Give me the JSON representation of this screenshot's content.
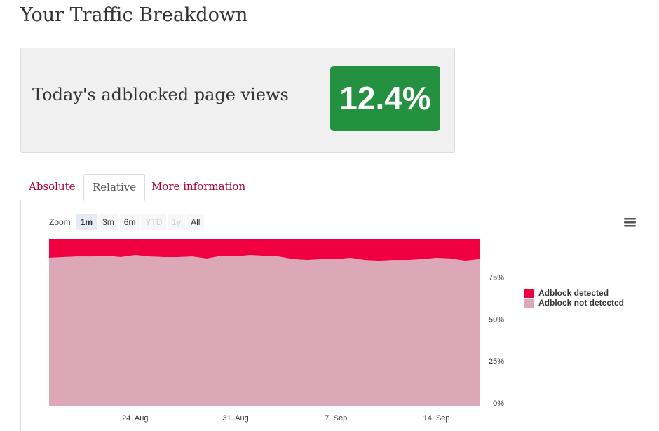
{
  "header": {
    "title": "Your Traffic Breakdown"
  },
  "summary": {
    "label": "Today's adblocked page views",
    "value": "12.4%"
  },
  "tabs": [
    "Absolute",
    "Relative",
    "More information"
  ],
  "zoom": {
    "label": "Zoom",
    "buttons": [
      "1m",
      "3m",
      "6m",
      "YTD",
      "1y",
      "All"
    ]
  },
  "chart_data": {
    "type": "stacked-area",
    "categories": [
      null,
      null,
      null,
      null,
      null,
      null,
      "24. Aug",
      null,
      null,
      null,
      null,
      null,
      null,
      "31. Aug",
      null,
      null,
      null,
      null,
      null,
      null,
      "7. Sep",
      null,
      null,
      null,
      null,
      null,
      null,
      "14. Sep",
      null,
      null,
      null
    ],
    "series": [
      {
        "name": "Adblock detected",
        "color": "#f00040",
        "values": [
          11.3,
          10.9,
          10.5,
          10.5,
          10.1,
          10.9,
          9.6,
          10.5,
          10.9,
          10.9,
          10.5,
          11.7,
          10.1,
          10.5,
          9.6,
          10.1,
          10.5,
          12.1,
          12.6,
          12.1,
          12.1,
          11.3,
          12.6,
          13.0,
          12.6,
          12.6,
          12.1,
          11.3,
          11.7,
          13.0,
          12.1
        ]
      },
      {
        "name": "Adblock not detected",
        "color": "#dca7b7",
        "values": [
          88.7,
          89.1,
          89.5,
          89.5,
          89.9,
          89.1,
          90.4,
          89.5,
          89.1,
          89.1,
          89.5,
          88.3,
          89.9,
          89.5,
          90.4,
          89.9,
          89.5,
          87.9,
          87.4,
          87.9,
          87.9,
          88.7,
          87.4,
          87.0,
          87.4,
          87.4,
          87.9,
          88.7,
          88.3,
          87.0,
          87.9
        ]
      }
    ],
    "ylim": [
      0,
      100
    ],
    "yticks": [
      {
        "value": 0,
        "label": "0%"
      },
      {
        "value": 25,
        "label": "25%"
      },
      {
        "value": 50,
        "label": "50%"
      },
      {
        "value": 75,
        "label": "75%"
      }
    ],
    "grid": false
  }
}
